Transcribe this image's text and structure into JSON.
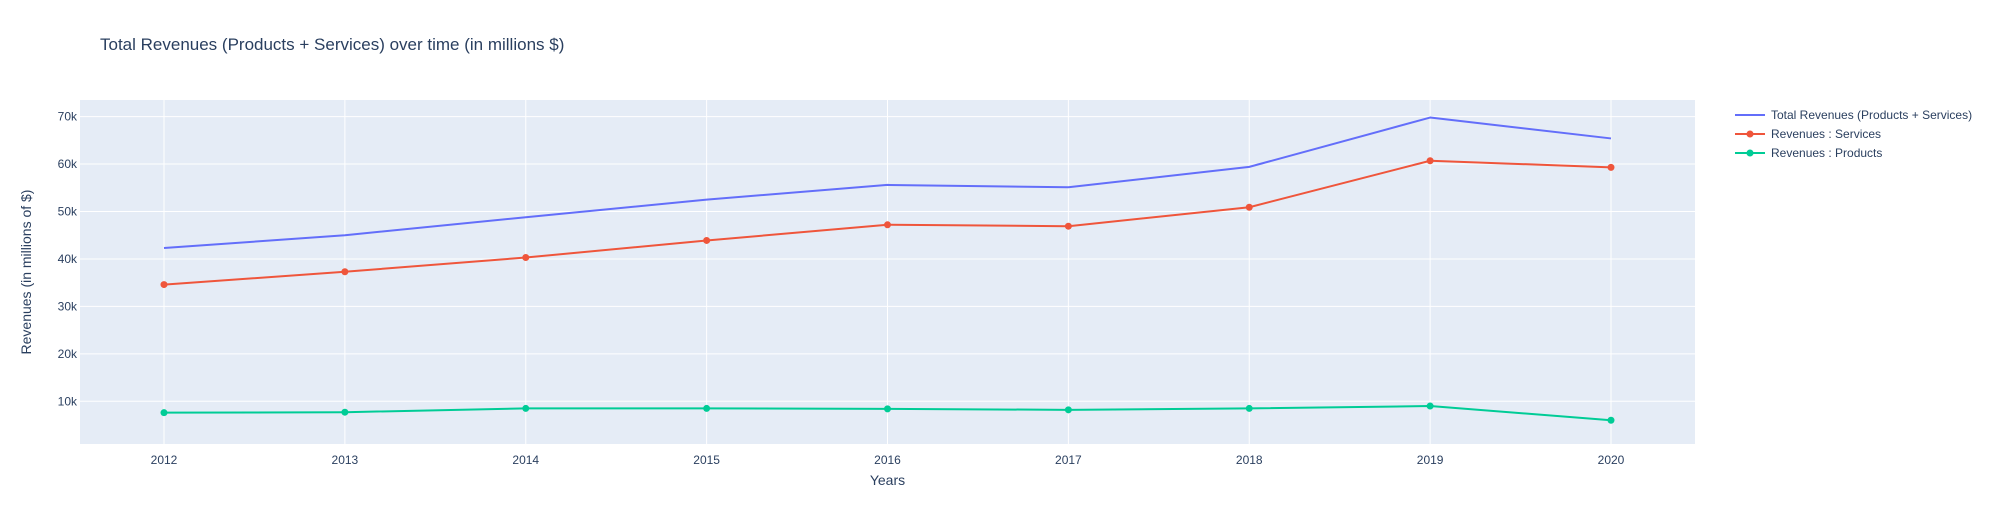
{
  "chart_data": {
    "type": "line",
    "title": "Total Revenues (Products + Services) over time (in millions $)",
    "xlabel": "Years",
    "ylabel": "Revenues (in millions of $)",
    "categories": [
      "2012",
      "2013",
      "2014",
      "2015",
      "2016",
      "2017",
      "2018",
      "2019",
      "2020"
    ],
    "ylim": [
      1000,
      73500
    ],
    "yticks": [
      10000,
      20000,
      30000,
      40000,
      50000,
      60000,
      70000
    ],
    "ytick_labels": [
      "10k",
      "20k",
      "30k",
      "40k",
      "50k",
      "60k",
      "70k"
    ],
    "grid": true,
    "legend_position": "top-right",
    "plot_background": "#E5ECF6",
    "series": [
      {
        "name": "Total Revenues (Products + Services)",
        "color": "#636EFA",
        "markers": false,
        "values": [
          42300,
          45000,
          48800,
          52500,
          55600,
          55100,
          59400,
          69800,
          65400
        ]
      },
      {
        "name": "Revenues : Services",
        "color": "#EF553B",
        "markers": true,
        "values": [
          34600,
          37300,
          40300,
          43900,
          47200,
          46900,
          50900,
          60700,
          59300
        ]
      },
      {
        "name": "Revenues : Products",
        "color": "#00CC96",
        "markers": true,
        "values": [
          7600,
          7700,
          8500,
          8500,
          8400,
          8200,
          8500,
          9000,
          6000
        ]
      }
    ]
  }
}
